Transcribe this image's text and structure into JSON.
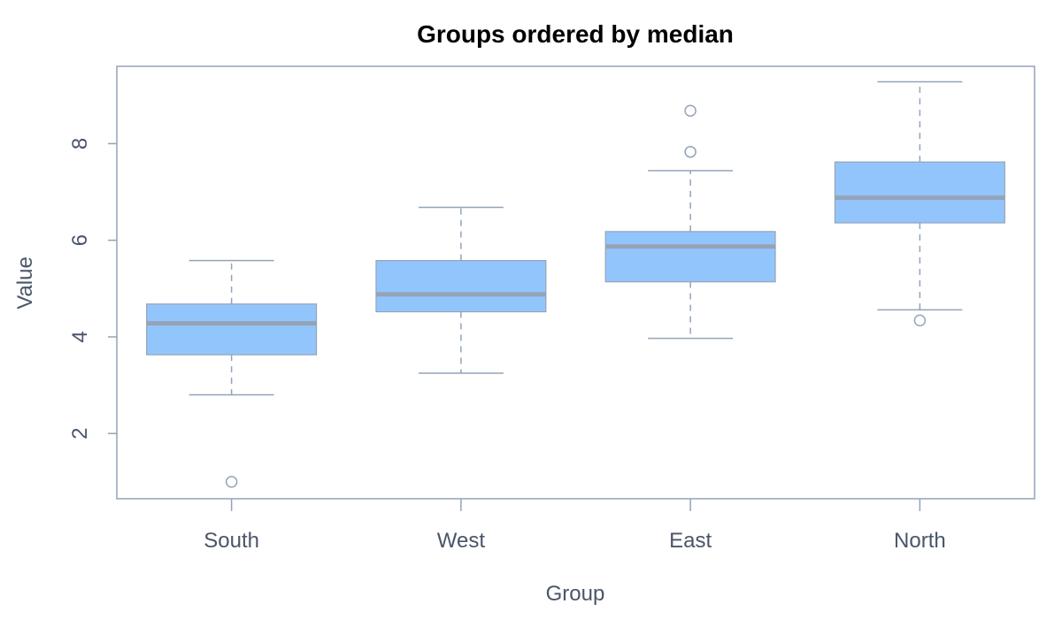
{
  "chart_data": {
    "type": "boxplot",
    "title": "Groups ordered by median",
    "xlabel": "Group",
    "ylabel": "Value",
    "ylim": [
      0.65,
      9.6
    ],
    "yticks": [
      2,
      4,
      6,
      8
    ],
    "categories": [
      "South",
      "West",
      "East",
      "North"
    ],
    "boxes": [
      {
        "group": "South",
        "whisker_low": 2.8,
        "q1": 3.63,
        "median": 4.28,
        "q3": 4.68,
        "whisker_high": 5.58,
        "outliers": [
          1.0
        ]
      },
      {
        "group": "West",
        "whisker_low": 3.25,
        "q1": 4.52,
        "median": 4.88,
        "q3": 5.58,
        "whisker_high": 6.68,
        "outliers": []
      },
      {
        "group": "East",
        "whisker_low": 3.97,
        "q1": 5.14,
        "median": 5.87,
        "q3": 6.18,
        "whisker_high": 7.44,
        "outliers": [
          7.83,
          8.68
        ]
      },
      {
        "group": "North",
        "whisker_low": 4.56,
        "q1": 6.36,
        "median": 6.88,
        "q3": 7.62,
        "whisker_high": 9.28,
        "outliers": [
          4.34
        ]
      }
    ],
    "grid": false,
    "colors": {
      "box_fill": "#93c5fd",
      "box_stroke": "#94a3b8",
      "median": "#94a3b8",
      "whisker": "#94a3b8",
      "frame": "#94a3b8",
      "text": "#4a5568"
    }
  }
}
